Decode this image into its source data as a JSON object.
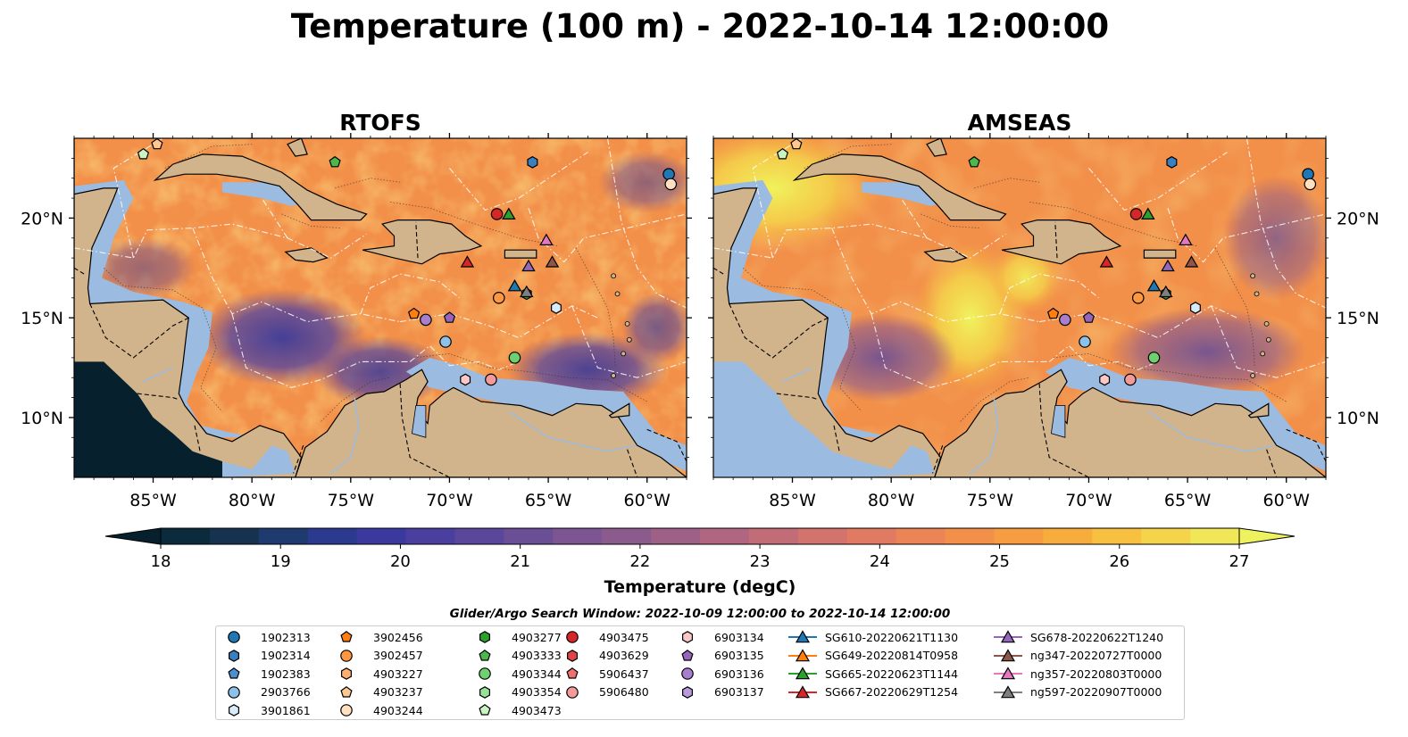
{
  "title": "Temperature (100 m) - 2022-10-14 12:00:00",
  "panels": [
    {
      "title": "RTOFS",
      "style": "rtofs"
    },
    {
      "title": "AMSEAS",
      "style": "amseas"
    }
  ],
  "map_extent": {
    "lon": [
      -89,
      -58
    ],
    "lat": [
      7,
      24
    ]
  },
  "x_ticks": [
    "85°W",
    "80°W",
    "75°W",
    "70°W",
    "65°W",
    "60°W"
  ],
  "x_tick_lons": [
    -85,
    -80,
    -75,
    -70,
    -65,
    -60
  ],
  "y_ticks": [
    "20°N",
    "15°N",
    "10°N"
  ],
  "y_tick_lats": [
    20,
    15,
    10
  ],
  "colorbar": {
    "label": "Temperature (degC)",
    "min": 18,
    "max": 27,
    "extend": "both",
    "ticks": [
      "18",
      "19",
      "20",
      "21",
      "22",
      "23",
      "24",
      "25",
      "26",
      "27"
    ],
    "colors": [
      "#0b2b3c",
      "#16324f",
      "#1e3a6e",
      "#2b3a8f",
      "#3a3a9e",
      "#4a3f9e",
      "#5a469a",
      "#6a4e96",
      "#7c5592",
      "#8c5b8e",
      "#9e6087",
      "#b06680",
      "#c26c78",
      "#d2736e",
      "#e07a62",
      "#eb8556",
      "#f2904a",
      "#f59d40",
      "#f7ad3c",
      "#f8c040",
      "#f5d34a",
      "#f0e658"
    ],
    "under_color": "#07202d",
    "over_color": "#edf25e"
  },
  "legend_title": "Glider/Argo Search Window: 2022-10-09 12:00:00 to 2022-10-14 12:00:00",
  "land_color": "#d2b48c",
  "shelf_color": "#9bbbe0",
  "markers": [
    {
      "name": "1902313",
      "shape": "circle",
      "color": "#1f77b4",
      "lon": -58.9,
      "lat": 22.2
    },
    {
      "name": "1902314",
      "shape": "hexagon",
      "color": "#3a7fc0",
      "lon": -65.8,
      "lat": 22.8
    },
    {
      "name": "1902383",
      "shape": "pentagon",
      "color": "#4a90d0",
      "lon": null,
      "lat": null
    },
    {
      "name": "2903766",
      "shape": "circle",
      "color": "#8ec1ea",
      "lon": -70.2,
      "lat": 13.8
    },
    {
      "name": "3901861",
      "shape": "hexagon",
      "color": "#d7ecfa",
      "lon": -64.6,
      "lat": 15.5
    },
    {
      "name": "3902456",
      "shape": "pentagon",
      "color": "#ff7f0e",
      "lon": -71.8,
      "lat": 15.2
    },
    {
      "name": "3902457",
      "shape": "circle",
      "color": "#ff9740",
      "lon": -67.5,
      "lat": 16.0
    },
    {
      "name": "4903227",
      "shape": "hexagon",
      "color": "#ffb070",
      "lon": null,
      "lat": null
    },
    {
      "name": "4903237",
      "shape": "pentagon",
      "color": "#ffc890",
      "lon": -84.8,
      "lat": 23.7
    },
    {
      "name": "4903244",
      "shape": "circle",
      "color": "#ffe0c0",
      "lon": -58.8,
      "lat": 21.7
    },
    {
      "name": "4903277",
      "shape": "hexagon",
      "color": "#2ca02c",
      "lon": -66.1,
      "lat": 16.2
    },
    {
      "name": "4903333",
      "shape": "pentagon",
      "color": "#4cb84c",
      "lon": -75.8,
      "lat": 22.8
    },
    {
      "name": "4903344",
      "shape": "circle",
      "color": "#6fd06f",
      "lon": -66.7,
      "lat": 13.0
    },
    {
      "name": "4903354",
      "shape": "hexagon",
      "color": "#98e098",
      "lon": null,
      "lat": null
    },
    {
      "name": "4903473",
      "shape": "pentagon",
      "color": "#c8f5c0",
      "lon": -85.5,
      "lat": 23.2
    },
    {
      "name": "4903475",
      "shape": "circle",
      "color": "#d62728",
      "lon": -67.6,
      "lat": 20.2
    },
    {
      "name": "4903629",
      "shape": "hexagon",
      "color": "#e04448",
      "lon": null,
      "lat": null
    },
    {
      "name": "5906437",
      "shape": "pentagon",
      "color": "#ee7070",
      "lon": null,
      "lat": null
    },
    {
      "name": "5906480",
      "shape": "circle",
      "color": "#f59a9a",
      "lon": -67.9,
      "lat": 11.9
    },
    {
      "name": "6903134",
      "shape": "hexagon",
      "color": "#fbc8c8",
      "lon": -69.2,
      "lat": 11.9
    },
    {
      "name": "6903135",
      "shape": "pentagon",
      "color": "#9467bd",
      "lon": -70.0,
      "lat": 15.0
    },
    {
      "name": "6903136",
      "shape": "circle",
      "color": "#a77fce",
      "lon": -71.2,
      "lat": 14.9
    },
    {
      "name": "6903137",
      "shape": "hexagon",
      "color": "#bb99dd",
      "lon": null,
      "lat": null
    },
    {
      "name": "SG610-20220621T1130",
      "shape": "triangle",
      "color": "#1f77b4",
      "lon": -66.7,
      "lat": 16.6
    },
    {
      "name": "SG649-20220814T0958",
      "shape": "triangle",
      "color": "#ff7f0e",
      "lon": null,
      "lat": null
    },
    {
      "name": "SG665-20220623T1144",
      "shape": "triangle",
      "color": "#2ca02c",
      "lon": -67.0,
      "lat": 20.2
    },
    {
      "name": "SG667-20220629T1254",
      "shape": "triangle",
      "color": "#d62728",
      "lon": -69.1,
      "lat": 17.8
    },
    {
      "name": "SG678-20220622T1240",
      "shape": "triangle",
      "color": "#9467bd",
      "lon": -66.0,
      "lat": 17.6
    },
    {
      "name": "ng347-20220727T0000",
      "shape": "triangle",
      "color": "#8c564b",
      "lon": -64.8,
      "lat": 17.8
    },
    {
      "name": "ng357-20220803T0000",
      "shape": "triangle",
      "color": "#e377c2",
      "lon": -65.1,
      "lat": 18.9
    },
    {
      "name": "ng597-20220907T0000",
      "shape": "triangle",
      "color": "#7f7f7f",
      "lon": -66.1,
      "lat": 16.3
    }
  ]
}
